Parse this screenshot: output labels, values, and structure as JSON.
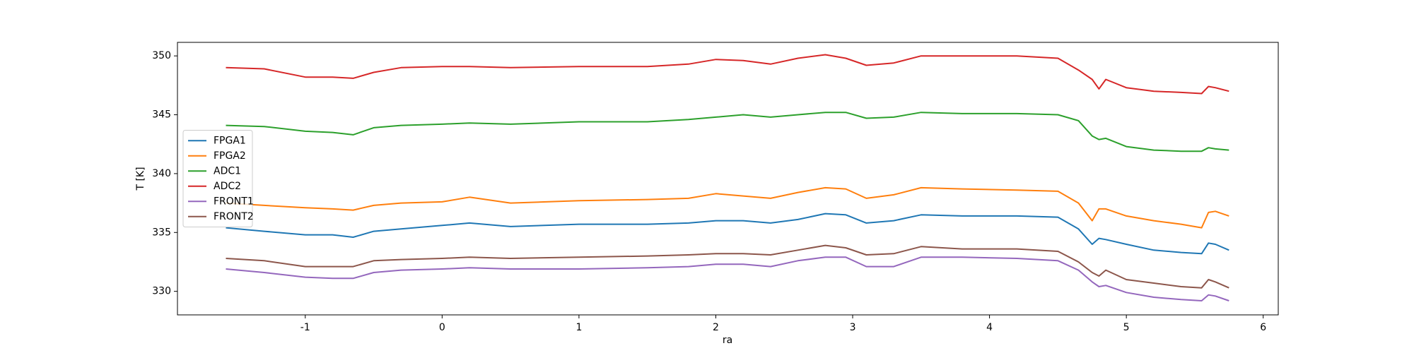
{
  "chart_data": {
    "type": "line",
    "xlabel": "ra",
    "ylabel": "T [K]",
    "xlim": [
      -1.934,
      6.11
    ],
    "ylim": [
      328,
      351.15
    ],
    "xticks": [
      -1,
      0,
      1,
      2,
      3,
      4,
      5,
      6
    ],
    "yticks": [
      330,
      335,
      340,
      345,
      350
    ],
    "legend": "center left",
    "x": [
      -1.58,
      -1.3,
      -1.0,
      -0.8,
      -0.65,
      -0.5,
      -0.3,
      0,
      0.2,
      0.5,
      1.0,
      1.5,
      1.8,
      2.0,
      2.2,
      2.4,
      2.6,
      2.8,
      2.95,
      3.1,
      3.3,
      3.5,
      3.8,
      4.2,
      4.5,
      4.65,
      4.75,
      4.8,
      4.85,
      5.0,
      5.2,
      5.4,
      5.55,
      5.6,
      5.65,
      5.75
    ],
    "series": [
      {
        "name": "FPGA1",
        "color": "#1f77b4",
        "values": [
          335.4,
          335.1,
          334.8,
          334.8,
          334.6,
          335.1,
          335.3,
          335.6,
          335.8,
          335.5,
          335.7,
          335.7,
          335.8,
          336,
          336,
          335.8,
          336.1,
          336.6,
          336.5,
          335.8,
          336,
          336.5,
          336.4,
          336.4,
          336.3,
          335.3,
          334,
          334.5,
          334.4,
          334,
          333.5,
          333.3,
          333.2,
          334.1,
          334,
          333.5
        ]
      },
      {
        "name": "FPGA2",
        "color": "#ff7f0e",
        "values": [
          337.5,
          337.3,
          337.1,
          337,
          336.9,
          337.3,
          337.5,
          337.6,
          338,
          337.5,
          337.7,
          337.8,
          337.9,
          338.3,
          338.1,
          337.9,
          338.4,
          338.8,
          338.7,
          337.9,
          338.2,
          338.8,
          338.7,
          338.6,
          338.5,
          337.5,
          336,
          337,
          337,
          336.4,
          336,
          335.7,
          335.4,
          336.7,
          336.8,
          336.4
        ]
      },
      {
        "name": "ADC1",
        "color": "#2ca02c",
        "values": [
          344.1,
          344,
          343.6,
          343.5,
          343.3,
          343.9,
          344.1,
          344.2,
          344.3,
          344.2,
          344.4,
          344.4,
          344.6,
          344.8,
          345,
          344.8,
          345,
          345.2,
          345.2,
          344.7,
          344.8,
          345.2,
          345.1,
          345.1,
          345,
          344.5,
          343.2,
          342.9,
          343,
          342.3,
          342,
          341.9,
          341.9,
          342.2,
          342.1,
          342
        ]
      },
      {
        "name": "ADC2",
        "color": "#d62728",
        "values": [
          349,
          348.9,
          348.2,
          348.2,
          348.1,
          348.6,
          349,
          349.1,
          349.1,
          349,
          349.1,
          349.1,
          349.3,
          349.7,
          349.6,
          349.3,
          349.8,
          350.1,
          349.8,
          349.2,
          349.4,
          350,
          350,
          350,
          349.8,
          348.8,
          348,
          347.2,
          348,
          347.3,
          347,
          346.9,
          346.8,
          347.4,
          347.3,
          347
        ]
      },
      {
        "name": "FRONT1",
        "color": "#9467bd",
        "values": [
          331.9,
          331.6,
          331.2,
          331.1,
          331.1,
          331.6,
          331.8,
          331.9,
          332,
          331.9,
          331.9,
          332,
          332.1,
          332.3,
          332.3,
          332.1,
          332.6,
          332.9,
          332.9,
          332.1,
          332.1,
          332.9,
          332.9,
          332.8,
          332.6,
          331.8,
          330.8,
          330.4,
          330.5,
          329.9,
          329.5,
          329.3,
          329.2,
          329.7,
          329.6,
          329.2
        ]
      },
      {
        "name": "FRONT2",
        "color": "#8c564b",
        "values": [
          332.8,
          332.6,
          332.1,
          332.1,
          332.1,
          332.6,
          332.7,
          332.8,
          332.9,
          332.8,
          332.9,
          333,
          333.1,
          333.2,
          333.2,
          333.1,
          333.5,
          333.9,
          333.7,
          333.1,
          333.2,
          333.8,
          333.6,
          333.6,
          333.4,
          332.5,
          331.6,
          331.3,
          331.8,
          331,
          330.7,
          330.4,
          330.3,
          331,
          330.8,
          330.3
        ]
      }
    ]
  }
}
